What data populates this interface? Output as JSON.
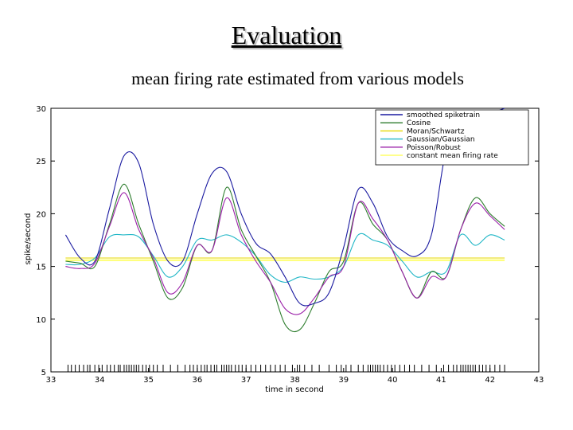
{
  "slide": {
    "title": "Evaluation",
    "subtitle": "mean firing rate estimated from various models"
  },
  "chart_data": {
    "type": "line",
    "xlabel": "time in second",
    "ylabel": "spike/second",
    "xlim": [
      33,
      43
    ],
    "ylim": [
      5,
      30
    ],
    "xticks": [
      33,
      34,
      35,
      36,
      37,
      38,
      39,
      40,
      41,
      42,
      43
    ],
    "yticks": [
      5,
      10,
      15,
      20,
      25,
      30
    ],
    "grid": false,
    "legend_position": "top-right",
    "x": [
      33.3,
      33.6,
      33.9,
      34.2,
      34.5,
      34.8,
      35.1,
      35.4,
      35.7,
      36.0,
      36.3,
      36.6,
      36.9,
      37.2,
      37.5,
      37.8,
      38.1,
      38.4,
      38.7,
      39.0,
      39.3,
      39.6,
      39.9,
      40.2,
      40.5,
      40.8,
      41.1,
      41.4,
      41.7,
      42.0,
      42.3
    ],
    "series": [
      {
        "name": "smoothed spiketrain",
        "color": "#1a1aa0",
        "values": [
          18.0,
          15.8,
          15.5,
          20.5,
          25.5,
          24.8,
          19.0,
          15.5,
          15.5,
          20.0,
          23.8,
          24.0,
          20.0,
          17.2,
          16.2,
          14.0,
          11.5,
          11.5,
          12.5,
          16.8,
          22.3,
          21.0,
          17.8,
          16.5,
          16.0,
          18.0,
          26.0,
          28.0,
          29.0,
          29.5,
          30.0
        ]
      },
      {
        "name": "Cosine",
        "color": "#2e7d2e",
        "values": [
          15.5,
          15.3,
          15.0,
          19.0,
          22.8,
          19.0,
          15.5,
          12.0,
          13.0,
          17.0,
          16.5,
          22.5,
          18.5,
          16.0,
          13.5,
          9.5,
          9.0,
          11.5,
          14.5,
          15.5,
          21.0,
          19.0,
          17.5,
          14.5,
          12.0,
          14.5,
          14.0,
          18.5,
          21.5,
          20.0,
          18.8
        ]
      },
      {
        "name": "Moran/Schwartz",
        "color": "#e6d800",
        "values": [
          15.8,
          15.8,
          15.8,
          15.8,
          15.8,
          15.8,
          15.8,
          15.8,
          15.8,
          15.8,
          15.8,
          15.8,
          15.8,
          15.8,
          15.8,
          15.8,
          15.8,
          15.8,
          15.8,
          15.8,
          15.8,
          15.8,
          15.8,
          15.8,
          15.8,
          15.8,
          15.8,
          15.8,
          15.8,
          15.8,
          15.8
        ]
      },
      {
        "name": "Gaussian/Gaussian",
        "color": "#22b7c7",
        "values": [
          15.2,
          15.2,
          15.8,
          17.8,
          18.0,
          17.8,
          16.0,
          14.0,
          15.0,
          17.5,
          17.5,
          18.0,
          17.3,
          16.0,
          14.2,
          13.5,
          14.0,
          13.8,
          14.0,
          15.0,
          18.0,
          17.5,
          17.0,
          15.5,
          14.0,
          14.5,
          14.5,
          18.0,
          17.0,
          18.0,
          17.5
        ]
      },
      {
        "name": "Poisson/Robust",
        "color": "#9a1fa8",
        "values": [
          15.0,
          14.8,
          15.3,
          18.8,
          22.0,
          18.5,
          15.8,
          12.5,
          13.5,
          17.0,
          16.5,
          21.5,
          18.0,
          15.5,
          13.5,
          11.0,
          10.5,
          12.0,
          14.0,
          15.0,
          21.0,
          19.5,
          17.5,
          14.5,
          12.0,
          14.0,
          14.0,
          18.5,
          21.0,
          19.8,
          18.5
        ]
      },
      {
        "name": "constant mean firing rate",
        "color": "#ffff66",
        "values": [
          15.6,
          15.6,
          15.6,
          15.6,
          15.6,
          15.6,
          15.6,
          15.6,
          15.6,
          15.6,
          15.6,
          15.6,
          15.6,
          15.6,
          15.6,
          15.6,
          15.6,
          15.6,
          15.6,
          15.6,
          15.6,
          15.6,
          15.6,
          15.6,
          15.6,
          15.6,
          15.6,
          15.6,
          15.6,
          15.6,
          15.6
        ]
      }
    ],
    "spike_times": [
      33.35,
      33.42,
      33.5,
      33.58,
      33.67,
      33.75,
      33.8,
      33.9,
      33.98,
      34.05,
      34.15,
      34.22,
      34.3,
      34.38,
      34.42,
      34.5,
      34.55,
      34.6,
      34.65,
      34.7,
      34.75,
      34.8,
      34.88,
      34.95,
      35.02,
      35.1,
      35.18,
      35.3,
      35.45,
      35.6,
      35.75,
      35.85,
      35.92,
      36.0,
      36.08,
      36.15,
      36.2,
      36.28,
      36.35,
      36.4,
      36.5,
      36.55,
      36.6,
      36.65,
      36.7,
      36.78,
      36.85,
      36.92,
      37.0,
      37.1,
      37.2,
      37.3,
      37.4,
      37.5,
      37.6,
      37.7,
      37.8,
      37.95,
      38.05,
      38.1,
      38.2,
      38.35,
      38.5,
      38.7,
      38.85,
      38.95,
      39.05,
      39.15,
      39.3,
      39.4,
      39.5,
      39.55,
      39.6,
      39.65,
      39.7,
      39.75,
      39.82,
      39.9,
      39.98,
      40.05,
      40.15,
      40.25,
      40.35,
      40.45,
      40.6,
      40.75,
      40.9,
      41.05,
      41.15,
      41.25,
      41.32,
      41.4,
      41.45,
      41.5,
      41.55,
      41.6,
      41.65,
      41.7,
      41.78,
      41.85,
      41.92,
      42.0,
      42.1,
      42.2,
      42.3
    ]
  }
}
